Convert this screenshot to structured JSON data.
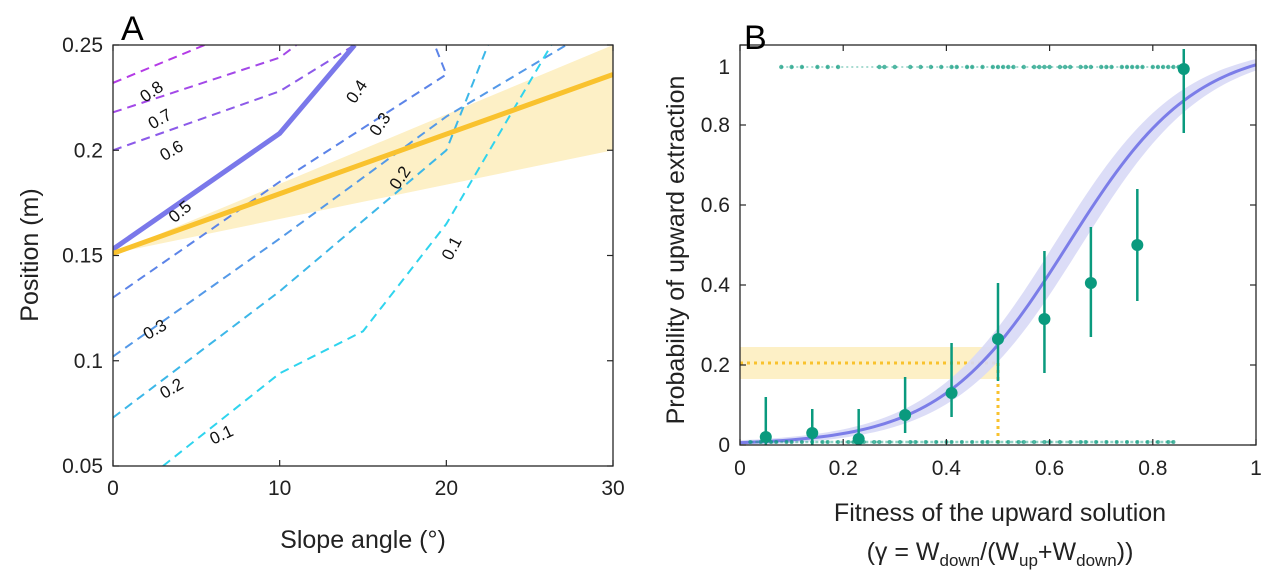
{
  "chart_data": [
    {
      "type": "line",
      "panel_label": "A",
      "xlabel": "Slope angle (°)",
      "ylabel": "Position (m)",
      "xlim": [
        0,
        30
      ],
      "ylim": [
        0.05,
        0.25
      ],
      "xticks": [
        0,
        10,
        20,
        30
      ],
      "yticks": [
        0.05,
        0.1,
        0.15,
        0.2,
        0.25
      ],
      "xtick_labels": [
        "0",
        "10",
        "20",
        "30"
      ],
      "ytick_labels": [
        "0.05",
        "0.1",
        "0.15",
        "0.2",
        "0.25"
      ],
      "grid": false,
      "contours": [
        {
          "level": "0.8",
          "color": "#b43be6",
          "x": [
            0,
            5.5
          ],
          "y": [
            0.232,
            0.25
          ],
          "label": {
            "x": 2.3,
            "y": 0.228,
            "angle": -35
          }
        },
        {
          "level": "0.7",
          "color": "#a348e8",
          "x": [
            0,
            10,
            11
          ],
          "y": [
            0.218,
            0.244,
            0.25
          ],
          "label": {
            "x": 2.8,
            "y": 0.215,
            "angle": -30
          }
        },
        {
          "level": "0.6",
          "color": "#8c5ae9",
          "x": [
            0,
            10,
            14.5
          ],
          "y": [
            0.2,
            0.228,
            0.25
          ],
          "label": {
            "x": 3.5,
            "y": 0.2,
            "angle": -30
          }
        },
        {
          "level": "0.5",
          "color": "#7a78ea",
          "x": [
            0,
            10,
            14.5
          ],
          "y": [
            0.153,
            0.208,
            0.25
          ],
          "label": {
            "x": 4.0,
            "y": 0.171,
            "angle": -40
          },
          "thick": true
        },
        {
          "level": "0.4",
          "color": "#5c84e8",
          "x": [
            0,
            10,
            20,
            19.3
          ],
          "y": [
            0.13,
            0.185,
            0.236,
            0.25
          ],
          "label": {
            "x": 14.6,
            "y": 0.228,
            "angle": -56
          }
        },
        {
          "level": "0.3",
          "color": "#5499e8",
          "x": [
            0,
            10,
            20,
            27.2
          ],
          "y": [
            0.102,
            0.158,
            0.216,
            0.25
          ],
          "label": {
            "x": 2.5,
            "y": 0.115,
            "angle": -30
          },
          "label2": {
            "x": 16.0,
            "y": 0.2125,
            "angle": -56
          }
        },
        {
          "level": "0.2",
          "color": "#3cb7e8",
          "x": [
            0,
            10,
            20,
            22.5
          ],
          "y": [
            0.073,
            0.133,
            0.2,
            0.25
          ],
          "label": {
            "x": 3.5,
            "y": 0.087,
            "angle": -30
          },
          "label2": {
            "x": 17.2,
            "y": 0.187,
            "angle": -56
          }
        },
        {
          "level": "0.1",
          "color": "#2fd4ee",
          "x": [
            3,
            10,
            15,
            20,
            26.3
          ],
          "y": [
            0.05,
            0.094,
            0.114,
            0.165,
            0.25
          ],
          "label": {
            "x": 6.5,
            "y": 0.065,
            "angle": -25
          },
          "label2": {
            "x": 20.3,
            "y": 0.1535,
            "angle": -62
          }
        }
      ],
      "mean_line": {
        "x": [
          0,
          30
        ],
        "y": [
          0.151,
          0.236
        ],
        "color": "#f9c22e"
      },
      "band": {
        "x": [
          0,
          30
        ],
        "lower": [
          0.151,
          0.2
        ],
        "upper": [
          0.151,
          0.25
        ],
        "color": "#fdf0c6"
      },
      "contour_labels": [
        "0.8",
        "0.7",
        "0.6",
        "0.5",
        "0.4",
        "0.3",
        "0.2",
        "0.1"
      ]
    },
    {
      "type": "scatter",
      "panel_label": "B",
      "xlabel": "Fitness of the upward solution",
      "xlabel2": {
        "open": "(",
        "gamma": "γ",
        "eq": " = W",
        "sub1": "down",
        "mid": "/(W",
        "sub2": "up",
        "plus": "+W",
        "sub3": "down",
        "close": "))"
      },
      "ylabel": "Probability of upward extraction",
      "xlim": [
        0,
        1
      ],
      "ylim": [
        0,
        1
      ],
      "xticks": [
        0,
        0.2,
        0.4,
        0.6,
        0.8,
        1
      ],
      "yticks": [
        0,
        0.2,
        0.4,
        0.6,
        0.8,
        1
      ],
      "xtick_labels": [
        "0",
        "0.2",
        "0.4",
        "0.6",
        "0.8",
        "1"
      ],
      "ytick_labels": [
        "0",
        "0.2",
        "0.4",
        "0.6",
        "0.8",
        "1"
      ],
      "grid": false,
      "points_color": "#0a9a7e",
      "fit_color": "#7b7de8",
      "binned_points": [
        {
          "x": 0.05,
          "y": 0.02,
          "lo": 0.0,
          "hi": 0.12
        },
        {
          "x": 0.14,
          "y": 0.03,
          "lo": 0.0,
          "hi": 0.09
        },
        {
          "x": 0.23,
          "y": 0.015,
          "lo": 0.0,
          "hi": 0.09
        },
        {
          "x": 0.32,
          "y": 0.075,
          "lo": 0.03,
          "hi": 0.17
        },
        {
          "x": 0.41,
          "y": 0.13,
          "lo": 0.07,
          "hi": 0.255
        },
        {
          "x": 0.5,
          "y": 0.265,
          "lo": 0.16,
          "hi": 0.405
        },
        {
          "x": 0.59,
          "y": 0.315,
          "lo": 0.18,
          "hi": 0.485
        },
        {
          "x": 0.68,
          "y": 0.405,
          "lo": 0.27,
          "hi": 0.545
        },
        {
          "x": 0.77,
          "y": 0.5,
          "lo": 0.36,
          "hi": 0.64
        },
        {
          "x": 0.86,
          "y": 0.94,
          "lo": 0.78,
          "hi": 0.99
        }
      ],
      "logistic_fit": {
        "x0": 0.635,
        "k": 8.1
      },
      "fit_band_halfwidth": 0.05,
      "reference": {
        "x": 0.5,
        "y": 0.205,
        "y_lo": 0.165,
        "y_hi": 0.245,
        "color": "#f9c22e"
      },
      "raw_top_x": [
        0.08,
        0.1,
        0.12,
        0.15,
        0.17,
        0.19,
        0.27,
        0.28,
        0.3,
        0.33,
        0.35,
        0.37,
        0.39,
        0.41,
        0.42,
        0.44,
        0.45,
        0.47,
        0.49,
        0.5,
        0.51,
        0.52,
        0.53,
        0.55,
        0.57,
        0.58,
        0.59,
        0.6,
        0.62,
        0.63,
        0.64,
        0.66,
        0.67,
        0.68,
        0.7,
        0.71,
        0.72,
        0.74,
        0.75,
        0.76,
        0.77,
        0.78,
        0.8,
        0.81,
        0.82,
        0.83,
        0.84,
        0.85,
        0.86
      ],
      "raw_bottom_x": [
        0.02,
        0.04,
        0.06,
        0.07,
        0.09,
        0.1,
        0.12,
        0.14,
        0.16,
        0.17,
        0.19,
        0.21,
        0.22,
        0.24,
        0.26,
        0.27,
        0.29,
        0.31,
        0.33,
        0.34,
        0.36,
        0.38,
        0.4,
        0.41,
        0.43,
        0.45,
        0.47,
        0.48,
        0.5,
        0.52,
        0.54,
        0.55,
        0.57,
        0.59,
        0.6,
        0.62,
        0.64,
        0.66,
        0.67,
        0.69,
        0.71,
        0.73,
        0.75,
        0.77,
        0.79,
        0.81,
        0.83,
        0.84
      ]
    }
  ]
}
